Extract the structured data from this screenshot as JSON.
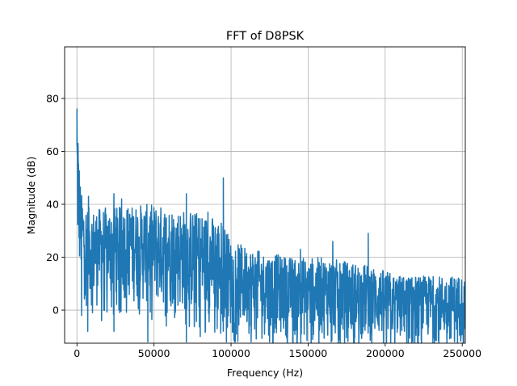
{
  "chart_data": {
    "type": "line",
    "title": "FFT of D8PSK",
    "xlabel": "Frequency (Hz)",
    "ylabel": "Magnitude (dB)",
    "xlim": [
      -8000,
      252000
    ],
    "ylim": [
      -12.5,
      99.5
    ],
    "x_ticks": [
      0,
      50000,
      100000,
      150000,
      200000,
      250000
    ],
    "x_tick_labels": [
      "0",
      "50000",
      "100000",
      "150000",
      "200000",
      "250000"
    ],
    "y_ticks": [
      0,
      20,
      40,
      60,
      80
    ],
    "y_tick_labels": [
      "0",
      "20",
      "40",
      "60",
      "80"
    ],
    "grid": true,
    "color": "#1f77b4",
    "series": [
      {
        "envelope": [
          {
            "x": 0,
            "upper": 76,
            "lower": 22
          },
          {
            "x": 1000,
            "upper": 63,
            "lower": 12
          },
          {
            "x": 2500,
            "upper": 45,
            "lower": 10
          },
          {
            "x": 5000,
            "upper": 40,
            "lower": 5
          },
          {
            "x": 10000,
            "upper": 38,
            "lower": 0
          },
          {
            "x": 20000,
            "upper": 39,
            "lower": 2
          },
          {
            "x": 30000,
            "upper": 39,
            "lower": 3
          },
          {
            "x": 40000,
            "upper": 40,
            "lower": 2
          },
          {
            "x": 50000,
            "upper": 40,
            "lower": 0
          },
          {
            "x": 60000,
            "upper": 39,
            "lower": 0
          },
          {
            "x": 70000,
            "upper": 38,
            "lower": -2
          },
          {
            "x": 80000,
            "upper": 37,
            "lower": -4
          },
          {
            "x": 90000,
            "upper": 35,
            "lower": -6
          },
          {
            "x": 95000,
            "upper": 34,
            "lower": -7
          },
          {
            "x": 100000,
            "upper": 26,
            "lower": -8
          },
          {
            "x": 110000,
            "upper": 24,
            "lower": -9
          },
          {
            "x": 120000,
            "upper": 22,
            "lower": -10
          },
          {
            "x": 130000,
            "upper": 21,
            "lower": -10
          },
          {
            "x": 140000,
            "upper": 20,
            "lower": -11
          },
          {
            "x": 150000,
            "upper": 20,
            "lower": -11
          },
          {
            "x": 160000,
            "upper": 20,
            "lower": -11
          },
          {
            "x": 170000,
            "upper": 19,
            "lower": -11
          },
          {
            "x": 180000,
            "upper": 18,
            "lower": -12
          },
          {
            "x": 190000,
            "upper": 17,
            "lower": -12
          },
          {
            "x": 200000,
            "upper": 15,
            "lower": -12
          },
          {
            "x": 210000,
            "upper": 13,
            "lower": -12
          },
          {
            "x": 220000,
            "upper": 13,
            "lower": -12
          },
          {
            "x": 230000,
            "upper": 13,
            "lower": -12
          },
          {
            "x": 240000,
            "upper": 13,
            "lower": -12
          },
          {
            "x": 252000,
            "upper": 13,
            "lower": -12
          }
        ],
        "peaks": [
          {
            "x": 0,
            "y": 76
          },
          {
            "x": 700,
            "y": 63
          },
          {
            "x": 1500,
            "y": 52
          },
          {
            "x": 7500,
            "y": 43
          },
          {
            "x": 24000,
            "y": 44
          },
          {
            "x": 29000,
            "y": 42
          },
          {
            "x": 71000,
            "y": 44
          },
          {
            "x": 85000,
            "y": 37
          },
          {
            "x": 95000,
            "y": 50
          },
          {
            "x": 189000,
            "y": 29
          },
          {
            "x": 166000,
            "y": 26
          },
          {
            "x": 145000,
            "y": 23
          }
        ],
        "dips": [
          {
            "x": 3000,
            "y": -2
          },
          {
            "x": 7000,
            "y": -8
          },
          {
            "x": 16000,
            "y": -4
          },
          {
            "x": 24000,
            "y": -8
          },
          {
            "x": 46000,
            "y": -12
          },
          {
            "x": 58000,
            "y": -6
          },
          {
            "x": 71000,
            "y": -12
          },
          {
            "x": 80000,
            "y": -10
          },
          {
            "x": 91000,
            "y": -7
          },
          {
            "x": 97000,
            "y": -12
          },
          {
            "x": 113000,
            "y": -12
          },
          {
            "x": 125000,
            "y": -12
          },
          {
            "x": 140000,
            "y": -12
          },
          {
            "x": 165000,
            "y": -12
          },
          {
            "x": 180000,
            "y": -12
          },
          {
            "x": 218000,
            "y": -12
          },
          {
            "x": 245000,
            "y": -12
          }
        ]
      }
    ]
  }
}
